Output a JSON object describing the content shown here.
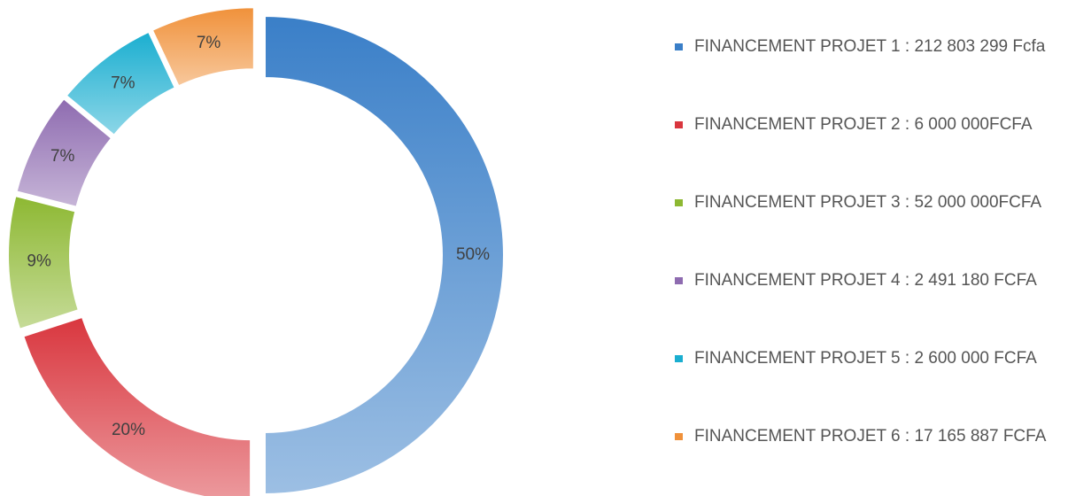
{
  "chart_data": {
    "type": "donut",
    "categories": [
      "FINANCEMENT PROJET 1 : 212 803 299 Fcfa",
      "FINANCEMENT PROJET 2 : 6 000 000FCFA",
      "FINANCEMENT PROJET 3 : 52 000 000FCFA",
      "FINANCEMENT PROJET 4 : 2 491 180 FCFA",
      "FINANCEMENT PROJET 5 : 2 600 000 FCFA",
      "FINANCEMENT PROJET 6 : 17 165 887 FCFA"
    ],
    "values": [
      50,
      20,
      9,
      7,
      7,
      7
    ],
    "value_labels": [
      "50%",
      "20%",
      "9%",
      "7%",
      "7%",
      "7%"
    ],
    "colors": [
      "#3a7fc8",
      "#d9363e",
      "#8db832",
      "#8e6bb0",
      "#1aaed0",
      "#f0913a"
    ],
    "legend": "right"
  }
}
